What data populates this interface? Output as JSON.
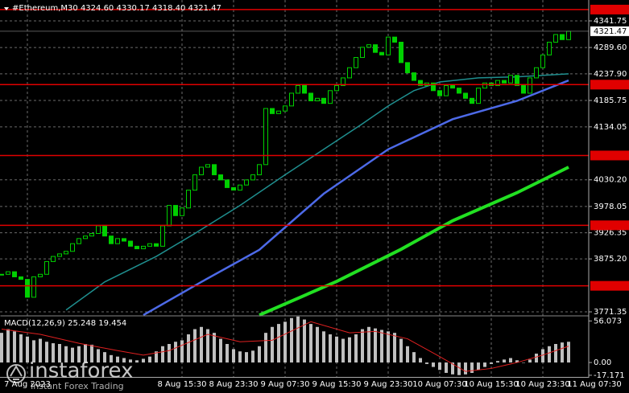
{
  "chart_data": [
    {
      "type": "candlestick",
      "title": "#Ethereum,M30  4324.60 4330.17 4318.40 4321.47",
      "color": "#00d000",
      "grid": true,
      "xlim": [
        -0.25,
        91.125
      ],
      "xticks": [
        {
          "value": 4,
          "label": "7 Aug 2023"
        },
        {
          "value": 28,
          "label": "8 Aug 15:30"
        },
        {
          "value": 36,
          "label": "8 Aug 23:30"
        },
        {
          "value": 44,
          "label": "9 Aug 07:30"
        },
        {
          "value": 52,
          "label": "9 Aug 15:30"
        },
        {
          "value": 60,
          "label": "9 Aug 23:30"
        },
        {
          "value": 68,
          "label": "10 Aug 07:30"
        },
        {
          "value": 76,
          "label": "10 Aug 15:30"
        },
        {
          "value": 84,
          "label": "10 Aug 23:30"
        },
        {
          "value": 92,
          "label": "11 Aug 07:30"
        }
      ],
      "ylim": [
        3765.1,
        4382.7
      ],
      "yticks": [
        4341.75,
        {
          "value": 4289.6,
          "label": "4289.60"
        },
        {
          "value": 4237.9,
          "label": "4237.90"
        },
        4185.75,
        4134.05,
        {
          "value": 4030.2,
          "label": "4030.20"
        },
        3978.05,
        3926.35,
        {
          "value": 3875.2,
          "label": "3875.20"
        },
        3771.35
      ],
      "values": [
        3845,
        3850,
        3840,
        3835,
        3800,
        3840,
        3845,
        3870,
        3880,
        3885,
        3890,
        3905,
        3915,
        3920,
        3925,
        3940,
        3920,
        3905,
        3915,
        3910,
        3900,
        3895,
        3900,
        3905,
        3900,
        3940,
        3980,
        3960,
        3975,
        4010,
        4040,
        4055,
        4060,
        4040,
        4030,
        4015,
        4010,
        4020,
        4030,
        4040,
        4060,
        4170,
        4160,
        4165,
        4175,
        4200,
        4215,
        4200,
        4185,
        4190,
        4180,
        4205,
        4215,
        4230,
        4250,
        4270,
        4290,
        4295,
        4280,
        4275,
        4310,
        4300,
        4260,
        4240,
        4225,
        4215,
        4220,
        4205,
        4195,
        4215,
        4210,
        4200,
        4190,
        4180,
        4210,
        4220,
        4215,
        4225,
        4220,
        4235,
        4215,
        4200,
        4230,
        4250,
        4275,
        4300,
        4315,
        4305,
        4321.47
      ],
      "levels": [
        4363.92,
        4216.78,
        {
          "value": 4077.9,
          "label": "4077.90"
        },
        3941.02,
        3822.39
      ],
      "level_color": "#e00000",
      "series": [
        {
          "color": "#1f8f8f",
          "x": [
            10,
            16,
            24,
            30,
            37,
            44,
            50,
            56,
            60,
            64,
            68,
            74,
            80,
            88
          ],
          "values": [
            3775,
            3830,
            3880,
            3925,
            3980,
            4040,
            4090,
            4140,
            4175,
            4205,
            4222,
            4230,
            4232,
            4238
          ],
          "width": 1.5
        },
        {
          "color": "#4d6ae8",
          "x": [
            22,
            31,
            40,
            50,
            60,
            70,
            80,
            88
          ],
          "values": [
            3765,
            3830,
            3893,
            4003,
            4090,
            4149,
            4185,
            4225
          ],
          "width": 2.5
        },
        {
          "color": "#22e022",
          "x": [
            40,
            52,
            62,
            70,
            80,
            88
          ],
          "values": [
            3765,
            3831,
            3894,
            3950,
            4005,
            4055
          ],
          "width": 4
        }
      ]
    },
    {
      "type": "macd",
      "title": "MACD(12,26,9) 25.248 19.454",
      "color": "#c0c0c0",
      "ylim": [
        -19.45,
        62.94
      ],
      "yticks": [
        56.073,
        {
          "value": 0,
          "label": "0.00"
        },
        -17.171
      ],
      "values": [
        40,
        45,
        42,
        38,
        35,
        30,
        32,
        28,
        26,
        25,
        22,
        20,
        22,
        25,
        24,
        18,
        14,
        10,
        8,
        6,
        4,
        3,
        5,
        8,
        15,
        22,
        25,
        28,
        30,
        38,
        45,
        48,
        45,
        40,
        32,
        25,
        18,
        15,
        14,
        16,
        22,
        40,
        48,
        52,
        55,
        60,
        62,
        58,
        52,
        48,
        42,
        38,
        35,
        32,
        34,
        38,
        45,
        48,
        46,
        44,
        42,
        40,
        32,
        22,
        14,
        6,
        -2,
        -6,
        -10,
        -14,
        -16,
        -17,
        -16,
        -14,
        -10,
        -6,
        -2,
        2,
        4,
        6,
        3,
        0,
        4,
        12,
        18,
        22,
        25,
        27,
        28
      ],
      "signal": {
        "color": "#e02020",
        "x": [
          0,
          6,
          12,
          18,
          22,
          26,
          32,
          37,
          42,
          48,
          54,
          58,
          63,
          68,
          72,
          76,
          80,
          84,
          88
        ],
        "values": [
          45,
          38,
          26,
          16,
          10,
          16,
          38,
          28,
          30,
          55,
          40,
          42,
          32,
          8,
          -12,
          -8,
          0,
          10,
          22
        ]
      }
    }
  ],
  "watermark": {
    "brand": "instaforex",
    "tagline": "Instant Forex Trading"
  }
}
